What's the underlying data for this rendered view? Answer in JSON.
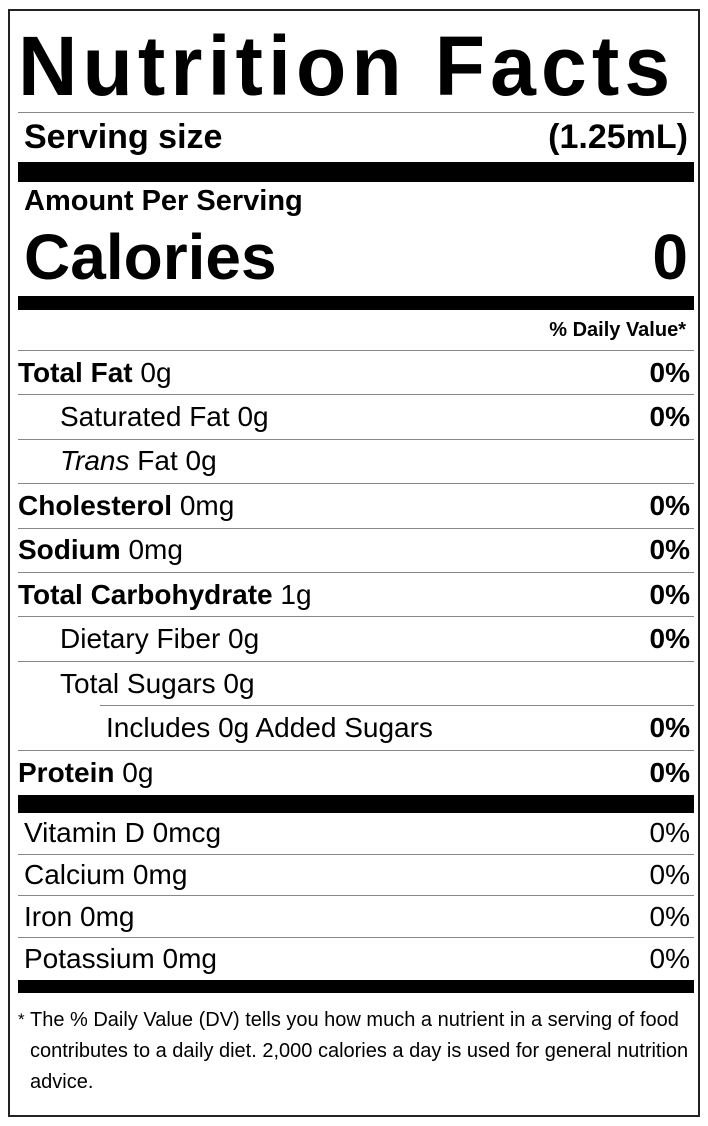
{
  "title": "Nutrition Facts",
  "serving": {
    "label": "Serving size",
    "value": "(1.25mL)"
  },
  "amount_per_serving": "Amount Per Serving",
  "calories": {
    "label": "Calories",
    "value": "0"
  },
  "daily_value_header": "% Daily Value*",
  "nutrients": [
    {
      "name": "Total Fat",
      "amount": "0g",
      "dv": "0%"
    },
    {
      "name": "Saturated Fat",
      "amount": "0g",
      "dv": "0%"
    },
    {
      "name": "Trans",
      "suffix": "Fat",
      "amount": "0g",
      "dv": ""
    },
    {
      "name": "Cholesterol",
      "amount": "0mg",
      "dv": "0%"
    },
    {
      "name": "Sodium",
      "amount": "0mg",
      "dv": "0%"
    },
    {
      "name": "Total Carbohydrate",
      "amount": "1g",
      "dv": "0%"
    },
    {
      "name": "Dietary Fiber",
      "amount": "0g",
      "dv": "0%"
    },
    {
      "name": "Total Sugars",
      "amount": "0g",
      "dv": ""
    },
    {
      "name": "Includes 0g Added Sugars",
      "amount": "",
      "dv": "0%"
    },
    {
      "name": "Protein",
      "amount": "0g",
      "dv": "0%"
    }
  ],
  "vitamins": [
    {
      "name": "Vitamin D",
      "amount": "0mcg",
      "dv": "0%"
    },
    {
      "name": "Calcium",
      "amount": "0mg",
      "dv": "0%"
    },
    {
      "name": "Iron",
      "amount": "0mg",
      "dv": "0%"
    },
    {
      "name": "Potassium",
      "amount": "0mg",
      "dv": "0%"
    }
  ],
  "footnote": {
    "asterisk": "*",
    "text": "The % Daily Value (DV) tells you how much a nutrient in a serving of food contributes to a daily diet. 2,000 calories a day is used for general nutrition advice."
  }
}
